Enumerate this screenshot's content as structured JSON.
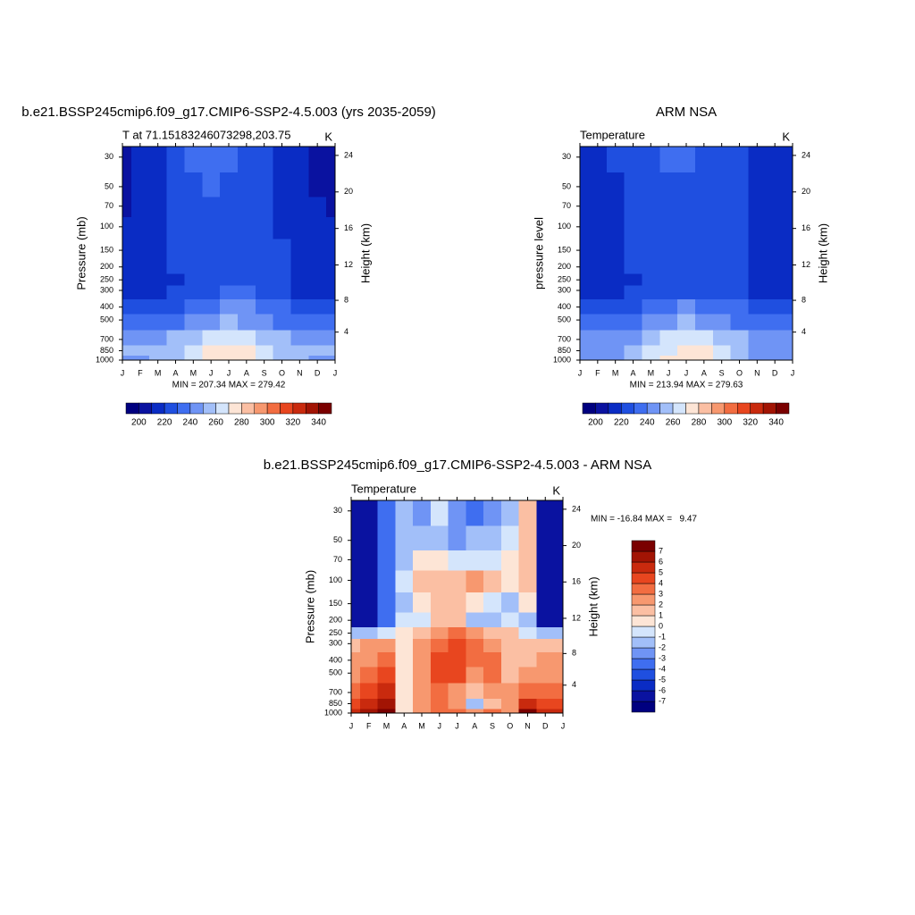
{
  "chart_data": [
    {
      "type": "contour",
      "title": "b.e21.BSSP245cmip6.f09_g17.CMIP6-SSP2-4.5.003 (yrs 2035-2059)",
      "left_string": "T at 71.15183246073298,203.75",
      "right_string": "K",
      "ylabel": "Pressure (mb)",
      "y2label": "Height (km)",
      "info": "MIN = 207.34 MAX = 279.42",
      "categories": [
        "J",
        "F",
        "M",
        "A",
        "M",
        "J",
        "J",
        "A",
        "S",
        "O",
        "N",
        "D",
        "J"
      ],
      "ylim": [
        1000,
        25
      ],
      "log_y": true,
      "yticks": [
        1000,
        850,
        700,
        500,
        400,
        300,
        250,
        200,
        150,
        100,
        70,
        50,
        30
      ],
      "y2ticks": [
        4,
        8,
        12,
        16,
        20,
        24
      ],
      "y": [
        1000,
        850,
        700,
        500,
        400,
        300,
        250,
        200,
        150,
        100,
        70,
        50,
        30
      ],
      "z": [
        [
          248,
          249,
          250,
          255,
          265,
          273,
          276,
          273,
          267,
          258,
          250,
          248,
          248
        ],
        [
          250,
          250,
          251,
          255,
          262,
          270,
          273,
          271,
          265,
          258,
          252,
          250,
          250
        ],
        [
          245,
          245,
          246,
          250,
          256,
          262,
          265,
          263,
          258,
          252,
          247,
          245,
          245
        ],
        [
          232,
          232,
          233,
          236,
          242,
          248,
          251,
          249,
          244,
          238,
          234,
          232,
          232
        ],
        [
          224,
          224,
          225,
          228,
          233,
          239,
          241,
          240,
          235,
          230,
          226,
          224,
          224
        ],
        [
          216,
          216,
          218,
          221,
          225,
          229,
          231,
          230,
          227,
          223,
          219,
          217,
          216
        ],
        [
          213,
          213,
          215,
          219,
          223,
          226,
          227,
          227,
          225,
          221,
          217,
          214,
          213
        ],
        [
          212,
          213,
          215,
          220,
          224,
          226,
          226,
          226,
          225,
          221,
          216,
          213,
          212
        ],
        [
          211,
          212,
          215,
          221,
          225,
          227,
          227,
          227,
          225,
          220,
          215,
          212,
          211
        ],
        [
          210,
          211,
          215,
          222,
          226,
          228,
          228,
          228,
          225,
          219,
          214,
          211,
          210
        ],
        [
          209,
          210,
          216,
          223,
          228,
          229,
          229,
          228,
          224,
          217,
          213,
          210,
          209
        ],
        [
          208,
          210,
          217,
          224,
          229,
          230,
          229,
          227,
          222,
          216,
          212,
          209,
          208
        ],
        [
          207,
          211,
          219,
          226,
          231,
          232,
          231,
          228,
          222,
          216,
          212,
          208,
          207
        ]
      ],
      "levels": [
        200,
        210,
        220,
        230,
        240,
        250,
        260,
        270,
        280,
        290,
        300,
        310,
        320,
        330,
        340
      ],
      "colorbar_labels": [
        200,
        220,
        240,
        260,
        280,
        300,
        320,
        340
      ],
      "colors": [
        "#00007f",
        "#0a12a0",
        "#0a2cc4",
        "#1f4fe0",
        "#3f6ef0",
        "#6f94f5",
        "#a2bff9",
        "#d4e5fc",
        "#fde5d6",
        "#fbbfa3",
        "#f7986f",
        "#f26d41",
        "#e8461f",
        "#c92a0e",
        "#a21404",
        "#7a0000"
      ]
    },
    {
      "type": "contour",
      "title": "ARM NSA",
      "left_string": "Temperature",
      "right_string": "K",
      "ylabel": "pressure level",
      "y2label": "Height (km)",
      "info": "MIN = 213.94 MAX = 279.63",
      "categories": [
        "J",
        "F",
        "M",
        "A",
        "M",
        "J",
        "J",
        "A",
        "S",
        "O",
        "N",
        "D",
        "J"
      ],
      "ylim": [
        1000,
        25
      ],
      "log_y": true,
      "yticks": [
        1000,
        850,
        700,
        500,
        400,
        300,
        250,
        200,
        150,
        100,
        70,
        50,
        30
      ],
      "y2ticks": [
        4,
        8,
        12,
        16,
        20,
        24
      ],
      "y": [
        1000,
        850,
        700,
        500,
        400,
        300,
        250,
        200,
        150,
        100,
        70,
        50,
        30
      ],
      "z": [
        [
          246,
          246,
          247,
          254,
          262,
          271,
          276,
          274,
          266,
          256,
          246,
          245,
          246
        ],
        [
          248,
          248,
          249,
          254,
          261,
          269,
          273,
          271,
          264,
          256,
          249,
          248,
          248
        ],
        [
          244,
          244,
          245,
          249,
          255,
          261,
          264,
          262,
          257,
          251,
          246,
          244,
          244
        ],
        [
          232,
          232,
          233,
          236,
          241,
          247,
          250,
          248,
          243,
          238,
          234,
          232,
          232
        ],
        [
          224,
          224,
          225,
          228,
          233,
          238,
          240,
          239,
          234,
          230,
          226,
          224,
          224
        ],
        [
          217,
          217,
          218,
          221,
          225,
          228,
          229,
          229,
          226,
          223,
          219,
          217,
          217
        ],
        [
          215,
          215,
          216,
          219,
          222,
          225,
          226,
          226,
          224,
          221,
          218,
          216,
          215
        ],
        [
          217,
          217,
          218,
          220,
          223,
          225,
          226,
          226,
          225,
          222,
          219,
          217,
          217
        ],
        [
          216,
          217,
          218,
          221,
          224,
          226,
          227,
          227,
          226,
          222,
          219,
          217,
          216
        ],
        [
          215,
          216,
          218,
          222,
          225,
          227,
          228,
          228,
          226,
          222,
          218,
          216,
          215
        ],
        [
          215,
          216,
          218,
          223,
          226,
          228,
          229,
          228,
          226,
          221,
          218,
          216,
          215
        ],
        [
          215,
          216,
          219,
          224,
          227,
          229,
          229,
          228,
          225,
          221,
          218,
          216,
          215
        ],
        [
          215,
          217,
          220,
          225,
          228,
          230,
          231,
          229,
          225,
          221,
          218,
          216,
          214
        ]
      ],
      "levels": [
        200,
        210,
        220,
        230,
        240,
        250,
        260,
        270,
        280,
        290,
        300,
        310,
        320,
        330,
        340
      ],
      "colorbar_labels": [
        200,
        220,
        240,
        260,
        280,
        300,
        320,
        340
      ],
      "colors": [
        "#00007f",
        "#0a12a0",
        "#0a2cc4",
        "#1f4fe0",
        "#3f6ef0",
        "#6f94f5",
        "#a2bff9",
        "#d4e5fc",
        "#fde5d6",
        "#fbbfa3",
        "#f7986f",
        "#f26d41",
        "#e8461f",
        "#c92a0e",
        "#a21404",
        "#7a0000"
      ]
    },
    {
      "type": "contour",
      "title": "b.e21.BSSP245cmip6.f09_g17.CMIP6-SSP2-4.5.003 - ARM NSA",
      "left_string": "Temperature",
      "right_string": "K",
      "ylabel": "Pressure (mb)",
      "y2label": "Height (km)",
      "info": "MIN = -16.84 MAX =   9.47",
      "categories": [
        "J",
        "F",
        "M",
        "A",
        "M",
        "J",
        "J",
        "A",
        "S",
        "O",
        "N",
        "D",
        "J"
      ],
      "ylim": [
        1000,
        25
      ],
      "log_y": true,
      "yticks": [
        1000,
        850,
        700,
        500,
        400,
        300,
        250,
        200,
        150,
        100,
        70,
        50,
        30
      ],
      "y2ticks": [
        4,
        8,
        12,
        16,
        20,
        24
      ],
      "y": [
        1000,
        850,
        700,
        500,
        400,
        300,
        250,
        200,
        150,
        100,
        70,
        50,
        30
      ],
      "z": [
        [
          5,
          6,
          7,
          0,
          2,
          3,
          3,
          2,
          3,
          2,
          7,
          5,
          5
        ],
        [
          4,
          5,
          6,
          0,
          2,
          3,
          2,
          -2,
          1,
          2,
          5,
          4,
          4
        ],
        [
          3,
          4,
          5,
          0,
          2,
          3,
          2,
          1,
          2,
          2,
          3,
          3,
          3
        ],
        [
          2,
          3,
          4,
          0,
          2,
          4,
          4,
          2,
          3,
          1,
          2,
          2,
          2
        ],
        [
          2,
          2,
          3,
          0,
          2,
          4,
          4,
          3,
          3,
          1,
          1,
          2,
          2
        ],
        [
          1,
          2,
          2,
          0,
          2,
          3,
          4,
          3,
          2,
          1,
          1,
          1,
          1
        ],
        [
          -2,
          -2,
          -1,
          0,
          1,
          2,
          3,
          2,
          1,
          1,
          -1,
          -2,
          -2
        ],
        [
          -7,
          -7,
          -4,
          -1,
          -1,
          1,
          1,
          -2,
          -2,
          -1,
          -2,
          -7,
          -7
        ],
        [
          -7,
          -7,
          -4,
          -2,
          0,
          1,
          1,
          0,
          -1,
          -2,
          0,
          -7,
          -7
        ],
        [
          -7,
          -7,
          -4,
          -1,
          1,
          1,
          1,
          2,
          1,
          0,
          1,
          -7,
          -7
        ],
        [
          -7,
          -7,
          -4,
          -2,
          0,
          0,
          -1,
          -1,
          -1,
          0,
          1,
          -7,
          -7
        ],
        [
          -7,
          -7,
          -4,
          -2,
          -2,
          -2,
          -3,
          -2,
          -2,
          -1,
          1,
          -7,
          -7
        ],
        [
          -7,
          -7,
          -4,
          -2,
          -3,
          -1,
          -3,
          -4,
          -3,
          -2,
          1,
          -7,
          -7
        ]
      ],
      "levels": [
        -7,
        -6,
        -5,
        -4,
        -3,
        -2,
        -1,
        0,
        1,
        2,
        3,
        4,
        5,
        6,
        7
      ],
      "colors": [
        "#00007f",
        "#0a12a0",
        "#0a2cc4",
        "#1f4fe0",
        "#3f6ef0",
        "#6f94f5",
        "#a2bff9",
        "#d4e5fc",
        "#fde5d6",
        "#fbbfa3",
        "#f7986f",
        "#f26d41",
        "#e8461f",
        "#c92a0e",
        "#a21404",
        "#7a0000"
      ]
    }
  ]
}
